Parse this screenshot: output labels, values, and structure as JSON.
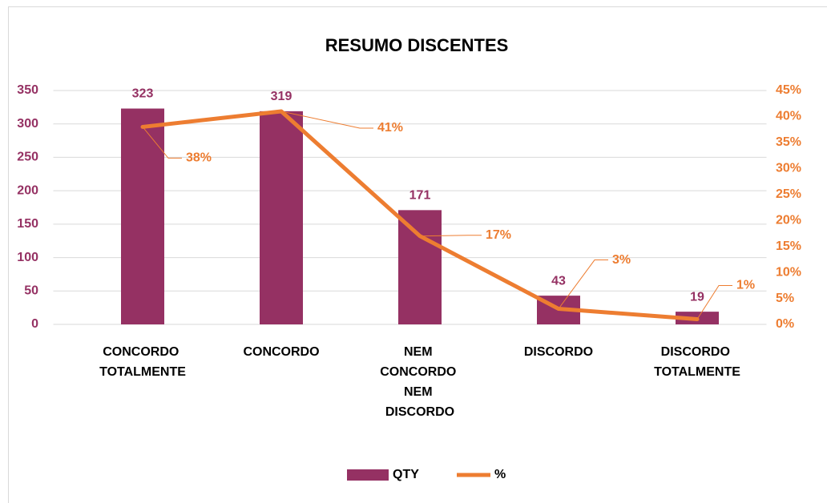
{
  "chart_data": {
    "type": "bar+line",
    "title": "RESUMO DISCENTES",
    "categories": [
      "CONCORDO TOTALMENTE",
      "CONCORDO",
      "NEM CONCORDO NEM DISCORDO",
      "DISCORDO",
      "DISCORDO TOTALMENTE"
    ],
    "series": [
      {
        "name": "QTY",
        "type": "bar",
        "color": "#953163",
        "values": [
          323,
          319,
          171,
          43,
          19
        ]
      },
      {
        "name": "%",
        "type": "line",
        "axis": "y2",
        "color": "#ED7D31",
        "values": [
          38,
          41,
          17,
          3,
          1
        ],
        "value_labels": [
          "38%",
          "41%",
          "17%",
          "3%",
          "1%"
        ]
      }
    ],
    "ylim": [
      0,
      350
    ],
    "yticks": [
      0,
      50,
      100,
      150,
      200,
      250,
      300,
      350
    ],
    "y2lim": [
      0,
      45
    ],
    "y2ticks": [
      {
        "value": 0,
        "label": "0%"
      },
      {
        "value": 5,
        "label": "5%"
      },
      {
        "value": 10,
        "label": "10%"
      },
      {
        "value": 15,
        "label": "15%"
      },
      {
        "value": 20,
        "label": "20%"
      },
      {
        "value": 25,
        "label": "25%"
      },
      {
        "value": 30,
        "label": "30%"
      },
      {
        "value": 35,
        "label": "35%"
      },
      {
        "value": 40,
        "label": "40%"
      },
      {
        "value": 45,
        "label": "45%"
      }
    ],
    "grid": true,
    "legend": "bottom"
  }
}
